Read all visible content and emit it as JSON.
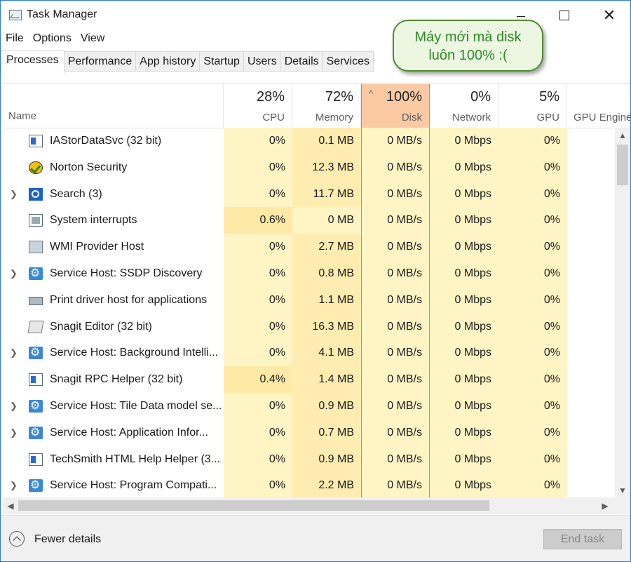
{
  "window": {
    "title": "Task Manager"
  },
  "menu": [
    "File",
    "Options",
    "View"
  ],
  "tabs": [
    "Processes",
    "Performance",
    "App history",
    "Startup",
    "Users",
    "Details",
    "Services"
  ],
  "columns": {
    "name": "Name",
    "cpu": {
      "pct": "28%",
      "label": "CPU"
    },
    "memory": {
      "pct": "72%",
      "label": "Memory"
    },
    "disk": {
      "pct": "100%",
      "label": "Disk"
    },
    "network": {
      "pct": "0%",
      "label": "Network"
    },
    "gpu": {
      "pct": "5%",
      "label": "GPU"
    },
    "gpu_engine": {
      "label": "GPU Engine"
    }
  },
  "processes": [
    {
      "name": "IAStorDataSvc (32 bit)",
      "cpu": "0%",
      "memory": "0.1 MB",
      "disk": "0 MB/s",
      "network": "0 Mbps",
      "gpu": "0%",
      "icon": "window-icon",
      "expandable": false
    },
    {
      "name": "Norton Security",
      "cpu": "0%",
      "memory": "12.3 MB",
      "disk": "0 MB/s",
      "network": "0 Mbps",
      "gpu": "0%",
      "icon": "norton-icon",
      "expandable": false
    },
    {
      "name": "Search (3)",
      "cpu": "0%",
      "memory": "11.7 MB",
      "disk": "0 MB/s",
      "network": "0 Mbps",
      "gpu": "0%",
      "icon": "search-icon",
      "expandable": true
    },
    {
      "name": "System interrupts",
      "cpu": "0.6%",
      "memory": "0 MB",
      "disk": "0 MB/s",
      "network": "0 Mbps",
      "gpu": "0%",
      "icon": "system-icon",
      "expandable": false
    },
    {
      "name": "WMI Provider Host",
      "cpu": "0%",
      "memory": "2.7 MB",
      "disk": "0 MB/s",
      "network": "0 Mbps",
      "gpu": "0%",
      "icon": "wmi-icon",
      "expandable": false
    },
    {
      "name": "Service Host: SSDP Discovery",
      "cpu": "0%",
      "memory": "0.8 MB",
      "disk": "0 MB/s",
      "network": "0 Mbps",
      "gpu": "0%",
      "icon": "gear-icon",
      "expandable": true
    },
    {
      "name": "Print driver host for applications",
      "cpu": "0%",
      "memory": "1.1 MB",
      "disk": "0 MB/s",
      "network": "0 Mbps",
      "gpu": "0%",
      "icon": "printer-icon",
      "expandable": false
    },
    {
      "name": "Snagit Editor (32 bit)",
      "cpu": "0%",
      "memory": "16.3 MB",
      "disk": "0 MB/s",
      "network": "0 Mbps",
      "gpu": "0%",
      "icon": "snagit-icon",
      "expandable": false
    },
    {
      "name": "Service Host: Background Intelli...",
      "cpu": "0%",
      "memory": "4.1 MB",
      "disk": "0 MB/s",
      "network": "0 Mbps",
      "gpu": "0%",
      "icon": "gear-icon",
      "expandable": true
    },
    {
      "name": "Snagit RPC Helper (32 bit)",
      "cpu": "0.4%",
      "memory": "1.4 MB",
      "disk": "0 MB/s",
      "network": "0 Mbps",
      "gpu": "0%",
      "icon": "window-icon",
      "expandable": false
    },
    {
      "name": "Service Host: Tile Data model se...",
      "cpu": "0%",
      "memory": "0.9 MB",
      "disk": "0 MB/s",
      "network": "0 Mbps",
      "gpu": "0%",
      "icon": "gear-icon",
      "expandable": true
    },
    {
      "name": "Service Host: Application Infor...",
      "cpu": "0%",
      "memory": "0.7 MB",
      "disk": "0 MB/s",
      "network": "0 Mbps",
      "gpu": "0%",
      "icon": "gear-icon",
      "expandable": true
    },
    {
      "name": "TechSmith HTML Help Helper (3...",
      "cpu": "0%",
      "memory": "0.9 MB",
      "disk": "0 MB/s",
      "network": "0 Mbps",
      "gpu": "0%",
      "icon": "window-icon",
      "expandable": false
    },
    {
      "name": "Service Host: Program Compati...",
      "cpu": "0%",
      "memory": "2.2 MB",
      "disk": "0 MB/s",
      "network": "0 Mbps",
      "gpu": "0%",
      "icon": "gear-icon",
      "expandable": true
    }
  ],
  "footer": {
    "fewer_details": "Fewer details",
    "end_task": "End task"
  },
  "callout": {
    "line1": "Máy mới mà disk",
    "line2": "luôn 100% :("
  },
  "colors": {
    "accent_border": "#2b7bd6",
    "disk_highlight": "#fbcaa5",
    "heat_light": "#fff4c4",
    "heat_medium": "#ffecb0",
    "callout_text": "#2e8a2a"
  }
}
